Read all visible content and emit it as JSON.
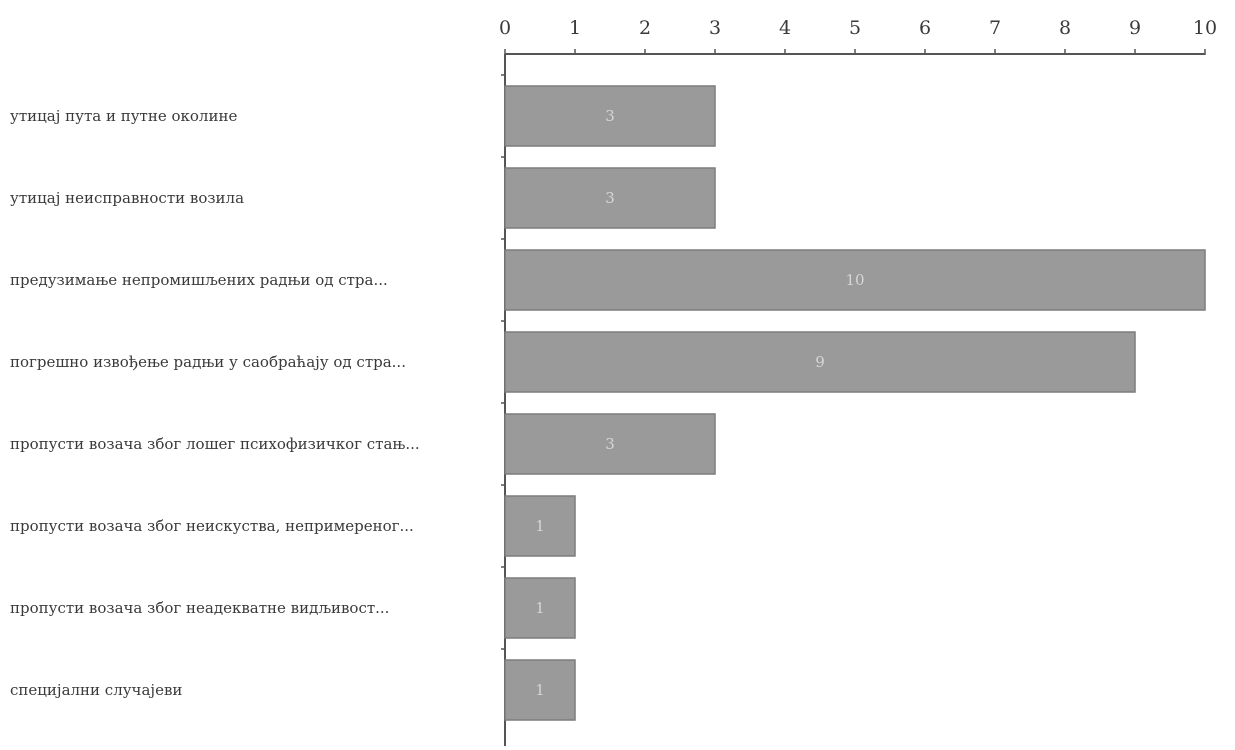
{
  "chart_data": {
    "type": "bar",
    "orientation": "horizontal",
    "categories": [
      "утицај пута и путне околине",
      "утицај неисправности возила",
      "предузимање непромишљених радњи од стра...",
      "погрешно извођење радњи у саобраћају од стра...",
      "пропусти возача због лошег психофизичког стањ...",
      "пропусти возача због неискуства, непримереног...",
      "пропусти возача због неадекватне видљивост...",
      "специјални случајеви"
    ],
    "values": [
      3,
      3,
      10,
      9,
      3,
      1,
      1,
      1
    ],
    "xlim": [
      0,
      10
    ],
    "ticks": [
      "0",
      "1",
      "2",
      "3",
      "4",
      "5",
      "6",
      "7",
      "8",
      "9",
      "10"
    ],
    "axis_position": "top",
    "grid": false,
    "data_labels": true,
    "bar_color": "#9a9a9a"
  }
}
